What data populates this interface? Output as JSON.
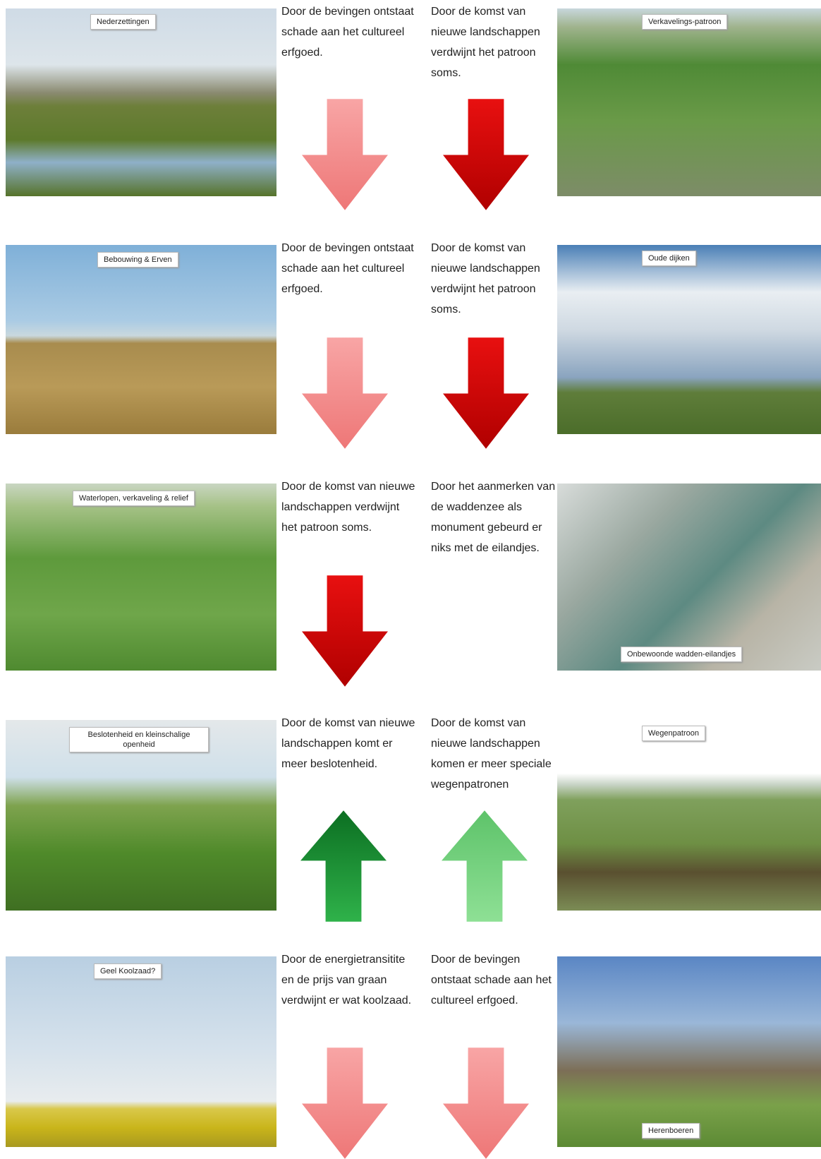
{
  "rows": [
    {
      "left_label": "Nederzettingen",
      "text_left": "Door de bevingen ontstaat schade aan het cultureel erfgoed.",
      "text_right": "Door de komst van nieuwe landschappen verdwijnt het patroon soms.",
      "right_label": "Verkavelings-patroon"
    },
    {
      "left_label": "Bebouwing & Erven",
      "text_left": "Door de bevingen ontstaat schade aan het cultureel erfgoed.",
      "text_right": "Door de komst van nieuwe landschappen verdwijnt het patroon soms.",
      "right_label": "Oude dijken"
    },
    {
      "left_label": "Waterlopen, verkaveling & relief",
      "text_left": "Door de komst van nieuwe landschappen verdwijnt het patroon soms.",
      "text_right": "Door het aanmerken van de waddenzee als monument gebeurd er niks met de eilandjes.",
      "right_label": "Onbewoonde wadden-eilandjes"
    },
    {
      "left_label": "Beslotenheid en kleinschalige openheid",
      "text_left": "Door de komst van nieuwe landschappen komt er meer beslotenheid.",
      "text_right": "Door de komst van nieuwe landschappen komen er meer speciale wegenpatronen",
      "right_label": "Wegenpatroon"
    },
    {
      "left_label": "Geel Koolzaad?",
      "text_left": "Door de energietransitite en de prijs van graan verdwijnt er wat koolzaad.",
      "text_right": "Door de bevingen ontstaat schade aan het cultureel erfgoed.",
      "right_label": "Herenboeren"
    }
  ]
}
